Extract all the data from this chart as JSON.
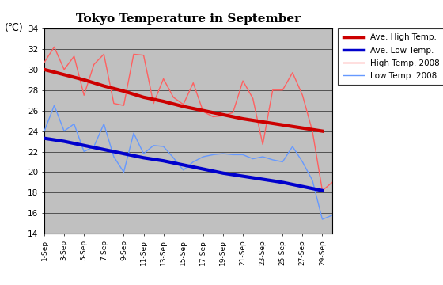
{
  "title": "Tokyo Temperature in September",
  "ylabel": "(℃)",
  "ylim": [
    14,
    34
  ],
  "yticks": [
    14,
    16,
    18,
    20,
    22,
    24,
    26,
    28,
    30,
    32,
    34
  ],
  "x_labels": [
    "1-Sep",
    "3-Sep",
    "5-Sep",
    "7-Sep",
    "9-Sep",
    "11-Sep",
    "13-Sep",
    "15-Sep",
    "17-Sep",
    "19-Sep",
    "21-Sep",
    "23-Sep",
    "25-Sep",
    "27-Sep",
    "29-Sep"
  ],
  "ave_high_x": [
    1,
    3,
    5,
    7,
    9,
    11,
    13,
    15,
    17,
    19,
    21,
    23,
    25,
    27,
    29
  ],
  "ave_high_y": [
    30.0,
    29.5,
    29.0,
    28.4,
    27.9,
    27.3,
    26.9,
    26.4,
    26.0,
    25.6,
    25.2,
    24.9,
    24.6,
    24.3,
    24.0
  ],
  "ave_low_x": [
    1,
    3,
    5,
    7,
    9,
    11,
    13,
    15,
    17,
    19,
    21,
    23,
    25,
    27,
    29
  ],
  "ave_low_y": [
    23.3,
    23.0,
    22.6,
    22.2,
    21.8,
    21.4,
    21.1,
    20.7,
    20.3,
    19.9,
    19.6,
    19.3,
    19.0,
    18.6,
    18.2
  ],
  "high_2008_x": [
    1,
    2,
    3,
    4,
    5,
    6,
    7,
    8,
    9,
    10,
    11,
    12,
    13,
    14,
    15,
    16,
    17,
    18,
    19,
    20,
    21,
    22,
    23,
    24,
    25,
    26,
    27,
    28,
    29,
    30
  ],
  "high_2008_y": [
    30.7,
    32.2,
    30.0,
    31.3,
    27.5,
    30.5,
    31.5,
    26.7,
    26.5,
    31.5,
    31.4,
    26.7,
    29.1,
    27.3,
    26.6,
    28.7,
    25.9,
    25.4,
    25.5,
    25.8,
    28.9,
    27.2,
    22.7,
    28.0,
    28.0,
    29.7,
    27.5,
    24.0,
    18.2,
    19.0
  ],
  "low_2008_x": [
    1,
    2,
    3,
    4,
    5,
    6,
    7,
    8,
    9,
    10,
    11,
    12,
    13,
    14,
    15,
    16,
    17,
    18,
    19,
    20,
    21,
    22,
    23,
    24,
    25,
    26,
    27,
    28,
    29,
    30
  ],
  "low_2008_y": [
    24.0,
    26.5,
    24.0,
    24.7,
    22.0,
    22.5,
    24.7,
    21.5,
    20.0,
    23.8,
    21.8,
    22.6,
    22.5,
    21.4,
    20.2,
    21.0,
    21.5,
    21.7,
    21.8,
    21.7,
    21.7,
    21.3,
    21.5,
    21.2,
    21.0,
    22.5,
    21.0,
    19.2,
    15.4,
    15.8
  ],
  "ave_high_color": "#cc0000",
  "ave_low_color": "#0000cc",
  "high_2008_color": "#ff6060",
  "low_2008_color": "#6699ff",
  "background_color": "#c0c0c0",
  "legend_entries": [
    "Ave. High Temp.",
    "Ave. Low Temp.",
    "High Temp. 2008",
    "Low Temp. 2008"
  ]
}
